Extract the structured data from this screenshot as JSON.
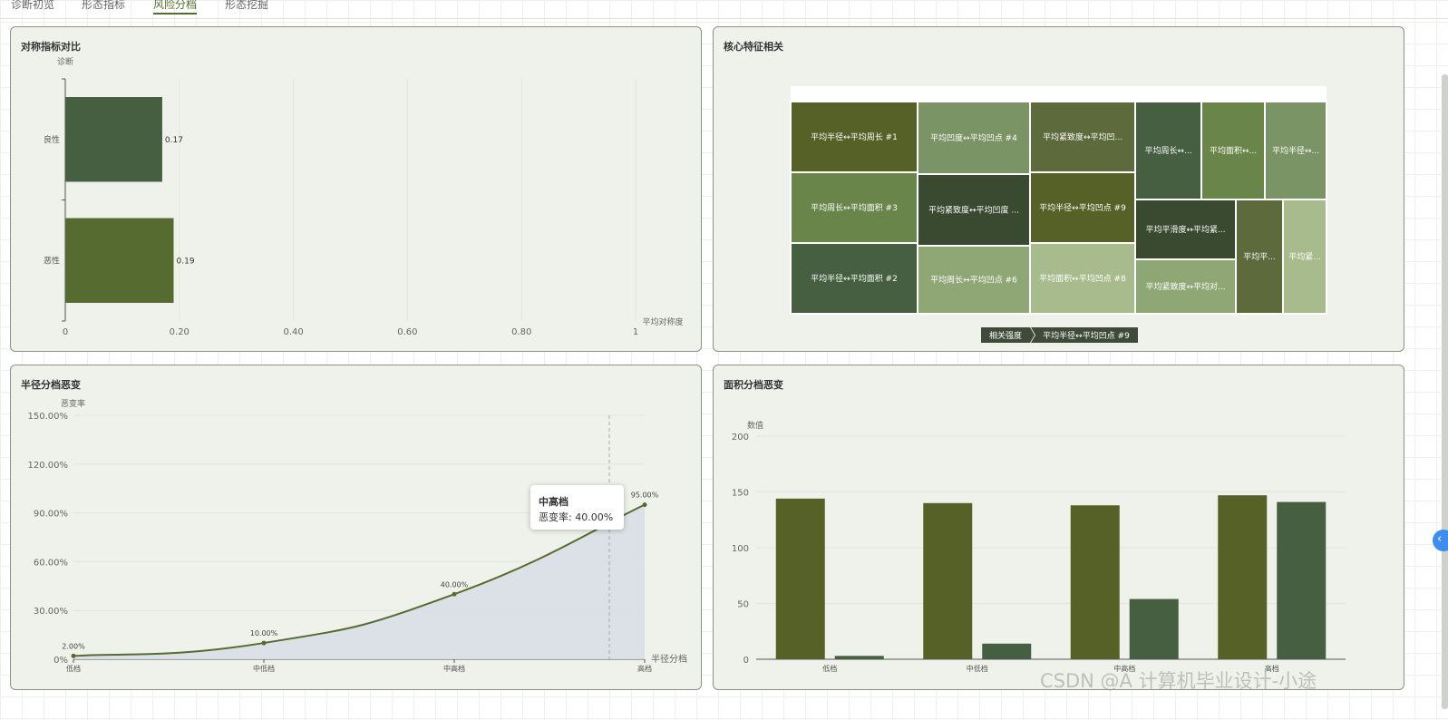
{
  "tabs": [
    {
      "label": "诊断初览",
      "active": false
    },
    {
      "label": "形态指标",
      "active": false
    },
    {
      "label": "风险分档",
      "active": true
    },
    {
      "label": "形态挖掘",
      "active": false
    }
  ],
  "colors": {
    "dark_olive": "#556b2f",
    "dark_green": "#465f41",
    "area_fill": "#d8dfe6",
    "panel_bg": "#eef2ea"
  },
  "panels": {
    "symmetry": {
      "title": "对称指标对比",
      "chart_data": {
        "type": "bar",
        "orientation": "horizontal",
        "categories": [
          "良性",
          "恶性"
        ],
        "values": [
          0.17,
          0.19
        ],
        "xlabel": "平均对称度",
        "ylabel": "诊断",
        "xlim": [
          0,
          1
        ],
        "xticks": [
          "0",
          "0.20",
          "0.40",
          "0.60",
          "0.80",
          "1"
        ],
        "data_labels": [
          "0.17",
          "0.19"
        ],
        "grid": true
      }
    },
    "treemap": {
      "title": "核心特征相关",
      "chart_data": {
        "type": "treemap",
        "items": [
          {
            "label": "平均半径↔平均周长 #1",
            "color": "#556127"
          },
          {
            "label": "平均周长↔平均面积 #3",
            "color": "#6a854a"
          },
          {
            "label": "平均半径↔平均面积 #2",
            "color": "#465f41"
          },
          {
            "label": "平均凹度↔平均凹点 #4",
            "color": "#7b9465"
          },
          {
            "label": "平均紧致度↔平均凹度 ...",
            "color": "#3a4a31"
          },
          {
            "label": "平均周长↔平均凹点 #6",
            "color": "#8ea775"
          },
          {
            "label": "平均紧致度↔平均凹...",
            "color": "#5d6a3c"
          },
          {
            "label": "平均半径↔平均凹点 #9",
            "color": "#556127"
          },
          {
            "label": "平均面积↔平均凹点 #8",
            "color": "#a8bb8c"
          },
          {
            "label": "平均周长↔...",
            "color": "#465f41"
          },
          {
            "label": "平均面积↔...",
            "color": "#6a854a"
          },
          {
            "label": "平均半径↔...",
            "color": "#7b9465"
          },
          {
            "label": "平均平滑度↔平均紧...",
            "color": "#3a4a31"
          },
          {
            "label": "平均紧致度↔平均对...",
            "color": "#8ea775"
          },
          {
            "label": "平均平...",
            "color": "#5d6a3c"
          },
          {
            "label": "平均紧...",
            "color": "#a8bb8c"
          }
        ],
        "breadcrumb": [
          "相关强度",
          "平均半径↔平均凹点 #9"
        ]
      }
    },
    "radius": {
      "title": "半径分档恶变",
      "chart_data": {
        "type": "area",
        "categories": [
          "低档",
          "中低档",
          "中高档",
          "高档"
        ],
        "values": [
          2.0,
          10.0,
          40.0,
          95.0
        ],
        "data_labels": [
          "2.00%",
          "10.00%",
          "40.00%",
          "95.00%"
        ],
        "ylabel": "恶变率",
        "xlabel": "半径分档",
        "ylim": [
          0,
          150
        ],
        "yticks": [
          "0%",
          "30.00%",
          "60.00%",
          "90.00%",
          "120.00%",
          "150.00%"
        ],
        "smooth": true
      },
      "tooltip": {
        "title": "中高档",
        "row": "恶变率: 40.00%"
      }
    },
    "area": {
      "title": "面积分档恶变",
      "chart_data": {
        "type": "bar",
        "categories": [
          "低档",
          "中低档",
          "中高档",
          "高档"
        ],
        "series": [
          {
            "values": [
              144,
              140,
              138,
              147
            ],
            "color": "#556127"
          },
          {
            "values": [
              3,
              14,
              54,
              141
            ],
            "color": "#465f41"
          }
        ],
        "ylabel": "数值",
        "ylim": [
          0,
          200
        ],
        "yticks": [
          "0",
          "50",
          "100",
          "150",
          "200"
        ]
      }
    }
  },
  "watermark": "CSDN @A 计算机毕业设计-小途",
  "side_button_icon": "chevron-left-icon"
}
